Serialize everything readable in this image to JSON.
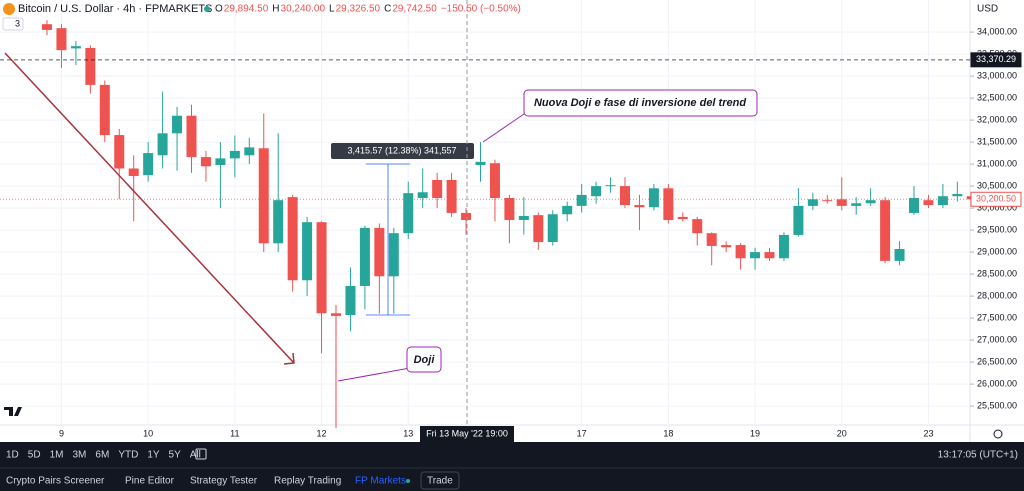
{
  "ui": {
    "symbol": "Bitcoin / U.S. Dollar · 4h · FPMARKETS",
    "ohlc": [
      {
        "k": "O",
        "v": "29,894.50"
      },
      {
        "k": "H",
        "v": "30,240.00"
      },
      {
        "k": "L",
        "v": "29,326.50"
      },
      {
        "k": "C",
        "v": "29,742.50"
      }
    ],
    "change": "−150.50 (−0.50%)",
    "indicators_badge": "3",
    "currency": "USD",
    "crosshair_time": "Fri 13 May '22   19:00",
    "measure": "3,415.57 (12.38%) 341,557",
    "callout_trend": "Nuova Doji e fase di inversione del trend",
    "callout_doji": "Doji",
    "timeframes": [
      "1D",
      "5D",
      "1M",
      "3M",
      "6M",
      "YTD",
      "1Y",
      "5Y",
      "All"
    ],
    "clock": "13:17:05 (UTC+1)",
    "tabs": [
      "Crypto Pairs Screener",
      "Pine Editor",
      "Strategy Tester",
      "Replay Trading",
      "FP Markets",
      "Trade"
    ]
  },
  "chart_data": {
    "type": "candlestick",
    "categories": [
      null,
      "9",
      null,
      null,
      null,
      null,
      null,
      "10",
      null,
      null,
      null,
      null,
      null,
      "11",
      null,
      null,
      null,
      null,
      null,
      "12",
      null,
      null,
      null,
      null,
      null,
      "13",
      null,
      null,
      null,
      null,
      null,
      null,
      null,
      null,
      null,
      null,
      null,
      "17",
      null,
      null,
      null,
      null,
      null,
      "18",
      null,
      null,
      null,
      null,
      null,
      "19",
      null,
      null,
      null,
      null,
      null,
      "20",
      null,
      null,
      null,
      null,
      null,
      "23",
      null,
      null,
      null
    ],
    "open": [
      34180,
      34090,
      33630,
      33640,
      32800,
      31660,
      30900,
      30750,
      31200,
      31700,
      32100,
      31160,
      30980,
      31130,
      31200,
      31360,
      29200,
      30250,
      28360,
      29680,
      27610,
      27570,
      28230,
      29550,
      28450,
      29430,
      30230,
      30640,
      30640,
      29890,
      30980,
      31020,
      30230,
      29730,
      29840,
      29230,
      29860,
      30050,
      30270,
      30500,
      30500,
      30070,
      30020,
      30450,
      29800,
      29750,
      29430,
      29160,
      29160,
      28860,
      29000,
      28860,
      29390,
      30050,
      30180,
      30200,
      30050,
      30110,
      30180,
      28800,
      29890,
      30180,
      30070,
      30270,
      30270
    ],
    "high": [
      34270,
      34180,
      33800,
      33700,
      32900,
      31800,
      31200,
      31500,
      32650,
      32300,
      32350,
      31300,
      31500,
      31650,
      31600,
      32150,
      31700,
      30300,
      29800,
      29700,
      27800,
      28650,
      29600,
      29650,
      29550,
      30600,
      30900,
      30800,
      30800,
      30000,
      31500,
      31100,
      30300,
      30250,
      29900,
      29950,
      30150,
      30550,
      30600,
      30700,
      30700,
      30300,
      30550,
      30550,
      29900,
      29800,
      29450,
      29250,
      29200,
      29100,
      29100,
      29450,
      30450,
      30350,
      30300,
      30700,
      30250,
      30450,
      30250,
      29250,
      30500,
      30300,
      30550,
      30600,
      30350
    ],
    "low": [
      33930,
      33180,
      33250,
      32600,
      31500,
      30200,
      29700,
      30600,
      30900,
      30850,
      30800,
      30600,
      30000,
      30700,
      31000,
      29000,
      29000,
      28100,
      28000,
      26700,
      25000,
      27200,
      27700,
      27600,
      27600,
      29300,
      30000,
      30000,
      29800,
      29400,
      30600,
      29700,
      29200,
      29400,
      29050,
      29150,
      29700,
      29900,
      30100,
      30350,
      30000,
      29500,
      29950,
      29650,
      29700,
      29150,
      28700,
      29000,
      28600,
      28600,
      28800,
      28800,
      29350,
      29950,
      30100,
      29950,
      29850,
      30050,
      28750,
      28700,
      29850,
      30000,
      30000,
      30150,
      30100
    ],
    "close": [
      34050,
      33590,
      33680,
      32800,
      31660,
      30900,
      30730,
      31250,
      31700,
      32100,
      31160,
      30950,
      31130,
      31300,
      31380,
      29200,
      30180,
      28360,
      29680,
      27610,
      27550,
      28230,
      29550,
      28450,
      29430,
      30340,
      30360,
      30230,
      29890,
      29730,
      31050,
      30230,
      29730,
      29820,
      29230,
      29860,
      30050,
      30300,
      30500,
      30520,
      30070,
      30020,
      30450,
      29730,
      29750,
      29430,
      29140,
      29110,
      28860,
      29000,
      28860,
      29390,
      30050,
      30200,
      30160,
      30050,
      30110,
      30180,
      28800,
      29070,
      30230,
      30070,
      30270,
      30320,
      30200
    ],
    "up_color": "#26a69a",
    "down_color": "#ef5350",
    "ylim": [
      25070,
      34730
    ],
    "yticks": [
      {
        "value": 25500,
        "label": "25,500.00"
      },
      {
        "value": 26000,
        "label": "26,000.00"
      },
      {
        "value": 26500,
        "label": "26,500.00"
      },
      {
        "value": 27000,
        "label": "27,000.00"
      },
      {
        "value": 27500,
        "label": "27,500.00"
      },
      {
        "value": 28000,
        "label": "28,000.00"
      },
      {
        "value": 28500,
        "label": "28,500.00"
      },
      {
        "value": 29000,
        "label": "29,000.00"
      },
      {
        "value": 29500,
        "label": "29,500.00"
      },
      {
        "value": 30000,
        "label": "30,000.00"
      },
      {
        "value": 30500,
        "label": "30,500.00"
      },
      {
        "value": 31000,
        "label": "31,000.00"
      },
      {
        "value": 31500,
        "label": "31,500.00"
      },
      {
        "value": 32000,
        "label": "32,000.00"
      },
      {
        "value": 32500,
        "label": "32,500.00"
      },
      {
        "value": 33000,
        "label": "33,000.00"
      },
      {
        "value": 33500,
        "label": "33,500.00"
      },
      {
        "value": 34000,
        "label": "34,000.00"
      }
    ],
    "grid": true,
    "price_lines": [
      {
        "value": 33370.29,
        "label": "33,370.29",
        "color": "#131722",
        "dashed": true
      },
      {
        "value": 30200.5,
        "label": "30,200.50",
        "color": "#ef5350",
        "dashed": false
      }
    ]
  }
}
